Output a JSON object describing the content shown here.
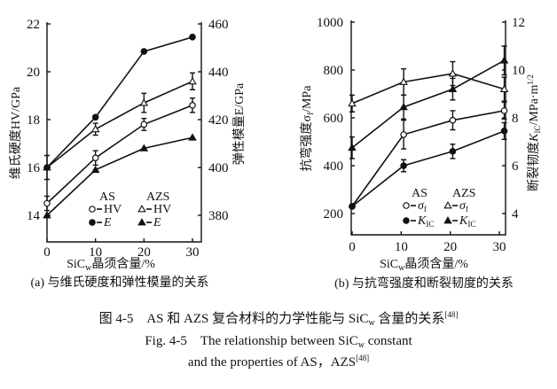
{
  "chart_data": [
    {
      "type": "line",
      "panel_caption": "(a) 与维氏硬度和弹性模量的关系",
      "xlabel": {
        "main": "SiC",
        "sub": "w",
        "rest": "晶须含量/%"
      },
      "ylabel_left": "维氏硬度HV/GPa",
      "ylabel_right": "弹性模量E/GPa",
      "x_ticks": [
        "0",
        "10",
        "20",
        "30"
      ],
      "y_left_ticks": [
        "14",
        "16",
        "18",
        "20",
        "22"
      ],
      "y_right_ticks": [
        "380",
        "400",
        "420",
        "440",
        "460"
      ],
      "xlim": [
        0,
        30
      ],
      "ylim_left": [
        12.9,
        22
      ],
      "ylim_right": [
        369,
        460
      ],
      "x": [
        0,
        10,
        20,
        30
      ],
      "legend": {
        "group_as": "AS",
        "group_azs": "AZS"
      },
      "series": [
        {
          "name": "HV",
          "group": "AS",
          "marker": "open-circle",
          "axis": "left",
          "values": [
            14.5,
            16.4,
            17.8,
            18.6
          ],
          "error": [
            0.3,
            0.3,
            0.25,
            0.3
          ]
        },
        {
          "name": "HV",
          "group": "AZS",
          "marker": "open-triangle",
          "axis": "left",
          "values": [
            16.0,
            17.6,
            18.7,
            19.6
          ],
          "error": [
            0.5,
            0.25,
            0.4,
            0.35
          ]
        },
        {
          "name": "E",
          "group": "AS",
          "marker": "filled-circle",
          "axis": "right",
          "values": [
            400,
            421,
            448.5,
            454.5
          ],
          "error": [
            0,
            0,
            0,
            0
          ]
        },
        {
          "name": "E",
          "group": "AZS",
          "marker": "filled-triangle",
          "axis": "right",
          "values": [
            380,
            399,
            408,
            412.5
          ],
          "error": [
            0,
            0,
            0,
            0
          ]
        }
      ]
    },
    {
      "type": "line",
      "panel_caption": "(b) 与抗弯强度和断裂韧度的关系",
      "xlabel": {
        "main": "SiC",
        "sub": "w",
        "rest": "晶须含量/%"
      },
      "ylabel_left": "抗弯强度σf/MPa",
      "ylabel_right": "断裂韧度KIC/MPa·m1/2",
      "x_ticks": [
        "0",
        "10",
        "20",
        "30"
      ],
      "y_left_ticks": [
        "200",
        "400",
        "600",
        "800",
        "1000"
      ],
      "y_right_ticks": [
        "4",
        "6",
        "8",
        "10",
        "12"
      ],
      "xlim": [
        0,
        31
      ],
      "ylim_left": [
        100,
        1000
      ],
      "ylim_right": [
        3,
        12
      ],
      "x": [
        0,
        10.5,
        20.5,
        31
      ],
      "legend": {
        "group_as": "AS",
        "group_azs": "AZS"
      },
      "series": [
        {
          "name": "σf",
          "group": "AS",
          "marker": "open-circle",
          "axis": "left",
          "values": [
            230,
            530,
            590,
            630
          ],
          "error": [
            0,
            60,
            40,
            35
          ]
        },
        {
          "name": "σf",
          "group": "AZS",
          "marker": "open-triangle",
          "axis": "left",
          "values": [
            660,
            750,
            785,
            720
          ],
          "error": [
            35,
            55,
            50,
            50
          ]
        },
        {
          "name": "KIC",
          "group": "AS",
          "marker": "filled-circle",
          "axis": "right",
          "values": [
            4.3,
            6.0,
            6.6,
            7.45
          ],
          "error": [
            0,
            0.25,
            0.3,
            0.35
          ]
        },
        {
          "name": "KIC",
          "group": "AZS",
          "marker": "filled-triangle",
          "axis": "right",
          "values": [
            6.75,
            8.45,
            9.2,
            10.4
          ],
          "error": [
            0.45,
            0.5,
            0.45,
            0.6
          ]
        }
      ]
    }
  ],
  "figure_caption": {
    "zh": "图 4-5　AS 和 AZS 复合材料的力学性能与 SiC",
    "zh_sub": "w",
    "zh_rest": " 含量的关系",
    "zh_ref": "[48]",
    "en_line1": "Fig. 4-5　The relationship between SiC",
    "en_line1_sub": "w",
    "en_line1_rest": " constant",
    "en_line2": "and the properties of AS，AZS",
    "en_line2_ref": "[48]"
  }
}
